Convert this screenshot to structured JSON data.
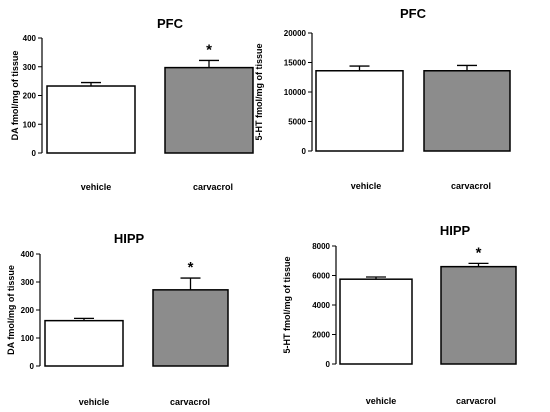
{
  "chart_data": [
    {
      "type": "bar",
      "title": "PFC",
      "ylabel": "DA fmol/mg of tissue",
      "categories": [
        "vehicle",
        "carvacrol"
      ],
      "values": [
        233,
        297
      ],
      "errors": [
        12,
        25
      ],
      "significance": [
        "",
        "*"
      ],
      "bar_colors": [
        "#ffffff",
        "#8c8c8c"
      ],
      "ylim": [
        0,
        400
      ],
      "yticks": [
        "0",
        "100",
        "200",
        "300",
        "400"
      ],
      "grid": false
    },
    {
      "type": "bar",
      "title": "PFC",
      "ylabel": "5-HT fmol/mg of tissue",
      "categories": [
        "vehicle",
        "carvacrol"
      ],
      "values": [
        13600,
        13600
      ],
      "errors": [
        800,
        900
      ],
      "significance": [
        "",
        ""
      ],
      "bar_colors": [
        "#ffffff",
        "#8c8c8c"
      ],
      "ylim": [
        0,
        20000
      ],
      "yticks": [
        "0",
        "5000",
        "10000",
        "15000",
        "20000"
      ],
      "grid": false
    },
    {
      "type": "bar",
      "title": "HIPP",
      "ylabel": "DA fmol/mg of tissue",
      "categories": [
        "vehicle",
        "carvacrol"
      ],
      "values": [
        162,
        272
      ],
      "errors": [
        8,
        42
      ],
      "significance": [
        "",
        "*"
      ],
      "bar_colors": [
        "#ffffff",
        "#8c8c8c"
      ],
      "ylim": [
        0,
        400
      ],
      "yticks": [
        "0",
        "100",
        "200",
        "300",
        "400"
      ],
      "grid": false
    },
    {
      "type": "bar",
      "title": "HIPP",
      "ylabel": "5-HT fmol/mg of tissue",
      "categories": [
        "vehicle",
        "carvacrol"
      ],
      "values": [
        5750,
        6600
      ],
      "errors": [
        150,
        220
      ],
      "significance": [
        "",
        "*"
      ],
      "bar_colors": [
        "#ffffff",
        "#8c8c8c"
      ],
      "ylim": [
        0,
        8000
      ],
      "yticks": [
        "0",
        "2000",
        "4000",
        "6000",
        "8000"
      ],
      "grid": false
    }
  ]
}
